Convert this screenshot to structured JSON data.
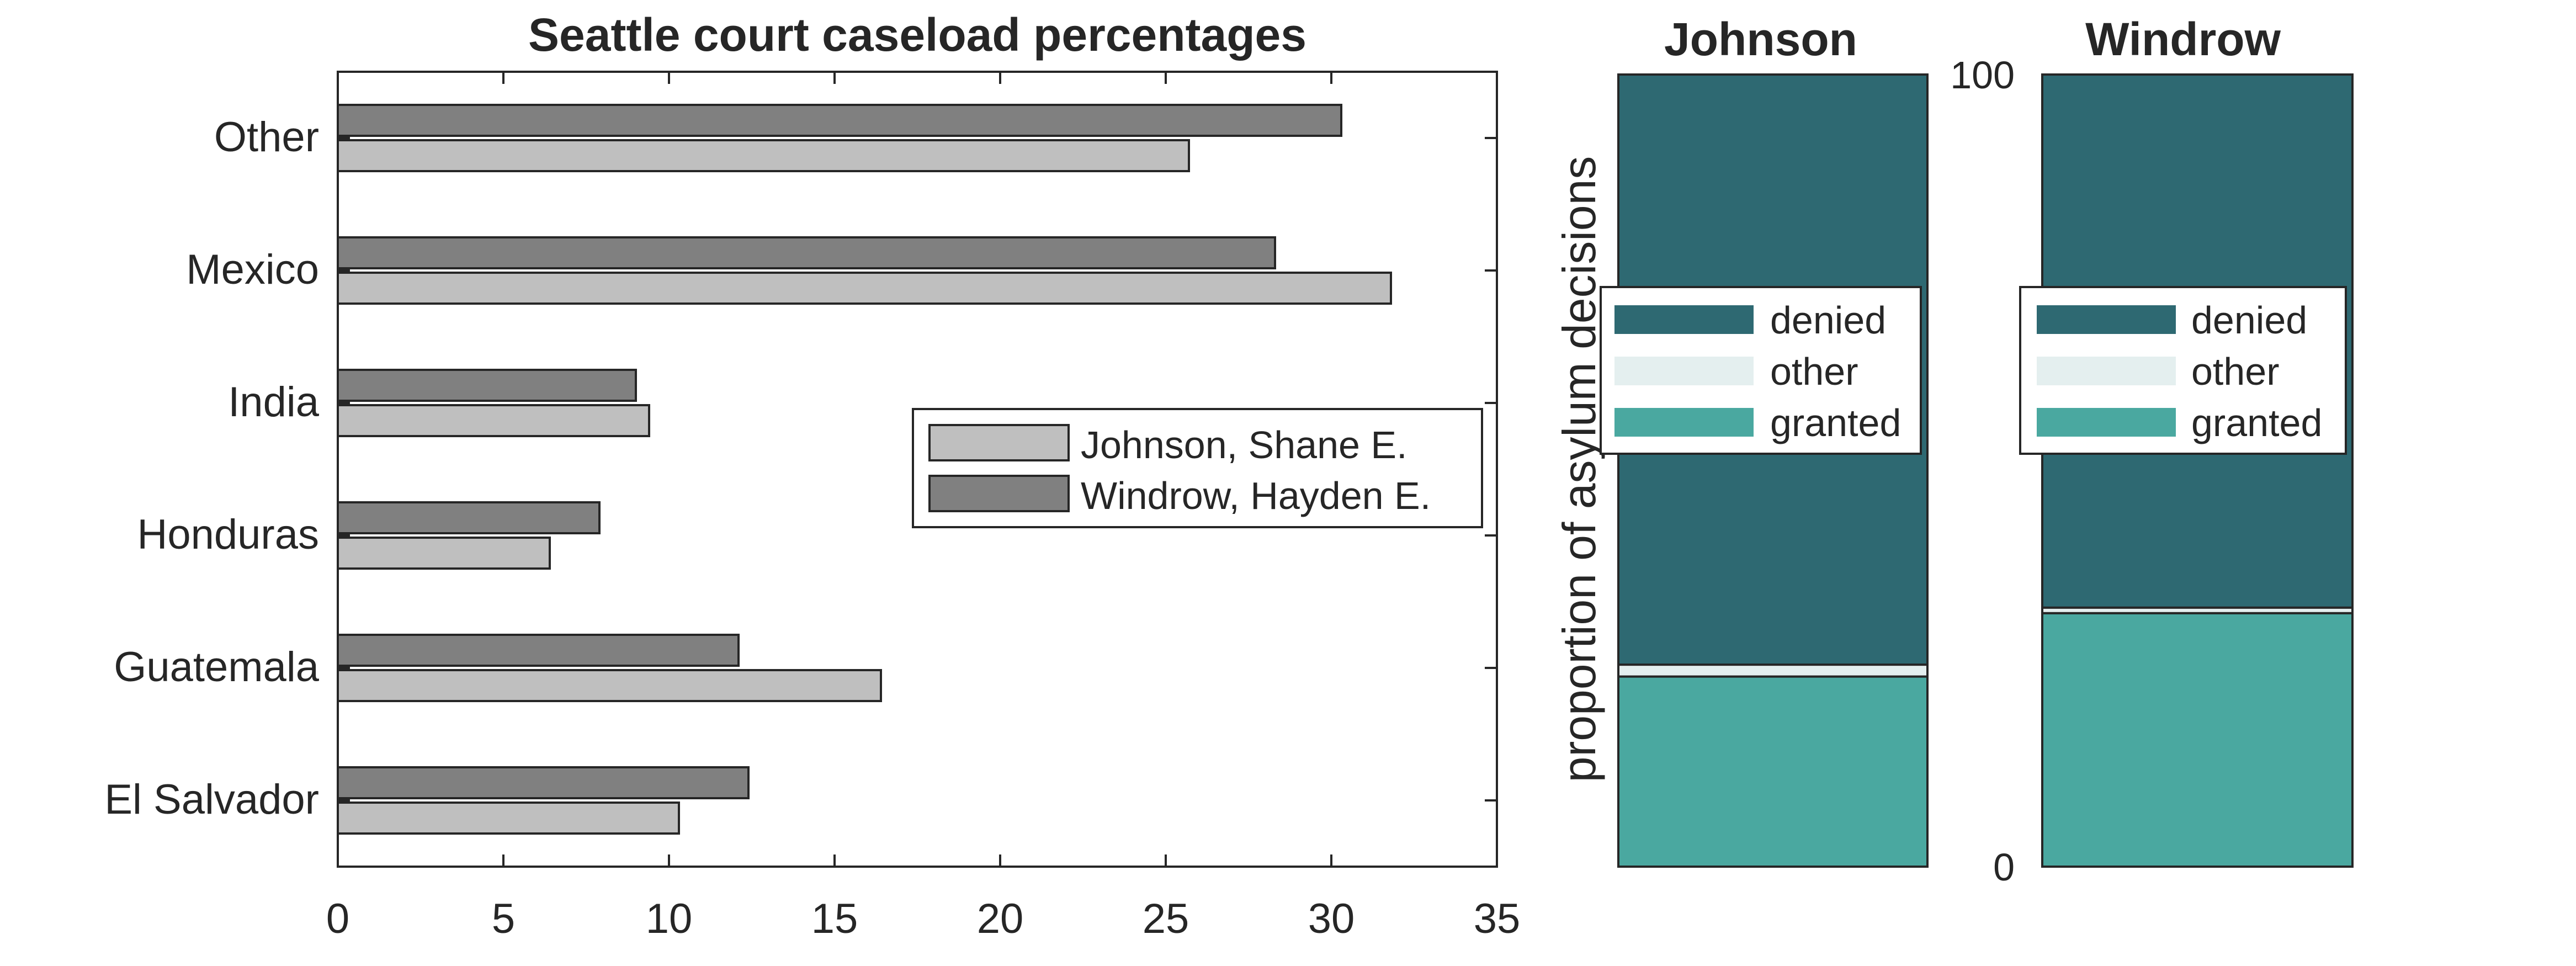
{
  "chart_data": [
    {
      "type": "bar",
      "orientation": "horizontal",
      "title": "Seattle court caseload percentages",
      "xlabel": "",
      "ylabel": "",
      "categories": [
        "El Salvador",
        "Guatemala",
        "Honduras",
        "India",
        "Mexico",
        "Other"
      ],
      "xlim": [
        0,
        35
      ],
      "xticks": [
        "0",
        "5",
        "10",
        "15",
        "20",
        "25",
        "30",
        "35"
      ],
      "grid": false,
      "legend_position": "center-right",
      "series": [
        {
          "name": "Johnson, Shane E.",
          "color": "#bfbfbf",
          "values": [
            10.3,
            16.4,
            6.4,
            9.4,
            31.8,
            25.7
          ]
        },
        {
          "name": "Windrow, Hayden E.",
          "color": "#808080",
          "values": [
            12.4,
            12.1,
            7.9,
            9.0,
            28.3,
            30.3
          ]
        }
      ]
    },
    {
      "type": "bar",
      "orientation": "vertical",
      "stacked": true,
      "title": "Johnson",
      "ylabel": "proportion of asylum decisions",
      "ylim": [
        0,
        100
      ],
      "legend_position": "center",
      "series": [
        {
          "name": "granted",
          "color": "#4aa8a0",
          "values": [
            24
          ]
        },
        {
          "name": "other",
          "color": "#e4efef",
          "values": [
            1.5
          ]
        },
        {
          "name": "denied",
          "color": "#2e6972",
          "values": [
            74.5
          ]
        }
      ]
    },
    {
      "type": "bar",
      "orientation": "vertical",
      "stacked": true,
      "title": "Windrow",
      "ylim": [
        0,
        100
      ],
      "yticks": [
        "0",
        "100"
      ],
      "legend_position": "center",
      "series": [
        {
          "name": "granted",
          "color": "#4aa8a0",
          "values": [
            32
          ]
        },
        {
          "name": "other",
          "color": "#e4efef",
          "values": [
            0.7
          ]
        },
        {
          "name": "denied",
          "color": "#2e6972",
          "values": [
            67.3
          ]
        }
      ]
    }
  ]
}
